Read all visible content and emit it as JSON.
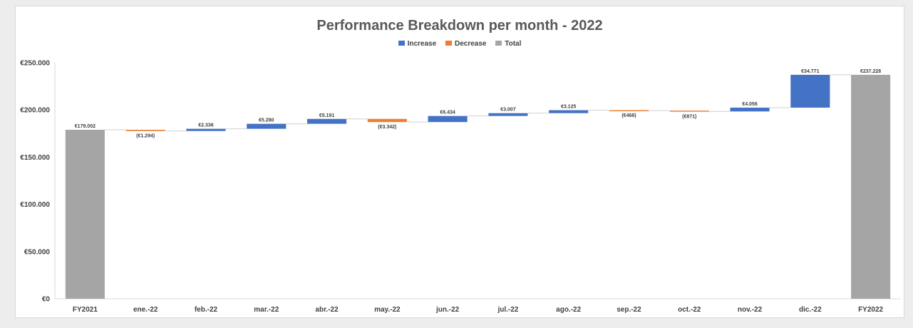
{
  "chart_data": {
    "type": "bar",
    "title": "Performance Breakdown per month - 2022",
    "legend": [
      {
        "label": "Increase",
        "color": "#4472c4"
      },
      {
        "label": "Decrease",
        "color": "#ed7d31"
      },
      {
        "label": "Total",
        "color": "#a5a5a5"
      }
    ],
    "legend_position": "top",
    "ylim": [
      0,
      250000
    ],
    "ytick_values": [
      0,
      50000,
      100000,
      150000,
      200000,
      250000
    ],
    "ytick_labels": [
      "€0",
      "€50.000",
      "€100.000",
      "€150.000",
      "€200.000",
      "€250.000"
    ],
    "grid": false,
    "categories": [
      "FY2021",
      "ene.-22",
      "feb.-22",
      "mar.-22",
      "abr.-22",
      "may.-22",
      "jun.-22",
      "jul.-22",
      "ago.-22",
      "sep.-22",
      "oct.-22",
      "nov.-22",
      "dic.-22",
      "FY2022"
    ],
    "kinds": [
      "total",
      "decrease",
      "increase",
      "increase",
      "increase",
      "decrease",
      "increase",
      "increase",
      "increase",
      "decrease",
      "decrease",
      "increase",
      "increase",
      "total"
    ],
    "values": [
      179002,
      -1294,
      2336,
      5280,
      5191,
      -3342,
      6434,
      3007,
      3125,
      -468,
      -871,
      4056,
      34771,
      237228
    ],
    "data_labels": [
      "€179.002",
      "(€1.294)",
      "€2.336",
      "€5.280",
      "€5.191",
      "(€3.342)",
      "€6.434",
      "€3.007",
      "€3.125",
      "(€468)",
      "(€871)",
      "€4.056",
      "€34.771",
      "€237.228"
    ],
    "colors": {
      "increase": "#4472c4",
      "decrease": "#ed7d31",
      "total": "#a5a5a5"
    }
  }
}
